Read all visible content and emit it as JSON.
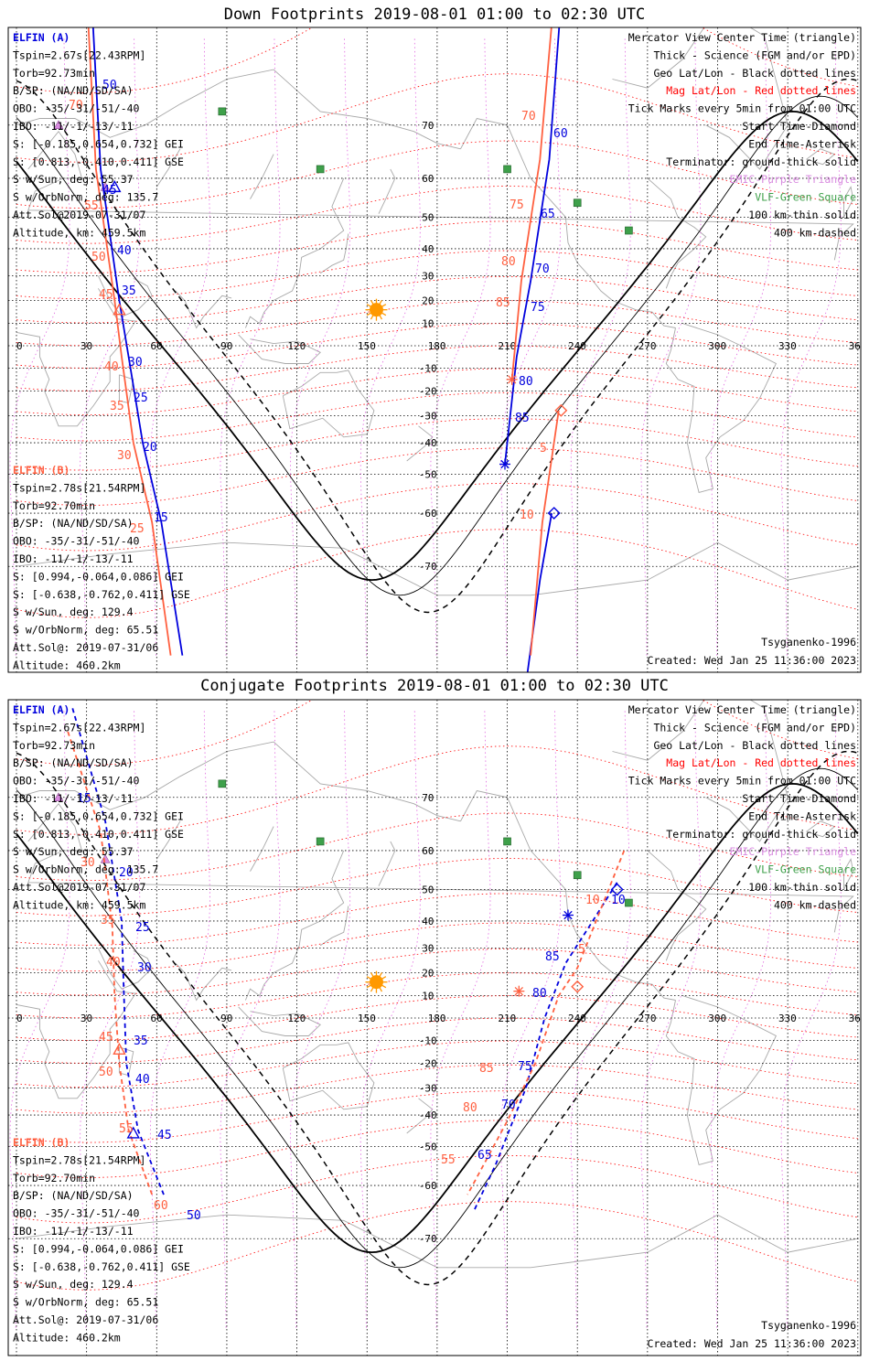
{
  "panels": [
    {
      "title": "Down Footprints 2019-08-01 01:00 to 02:30 UTC",
      "kind": "down",
      "legend": [
        {
          "text": "Mercator View Center Time (triangle)",
          "color": "#000000"
        },
        {
          "text": "Thick - Science (FGM and/or EPD)",
          "color": "#000000"
        },
        {
          "text": "Geo Lat/Lon - Black dotted lines",
          "color": "#000000"
        },
        {
          "text": "Mag Lat/Lon - Red dotted lines",
          "color": "#ff0000"
        },
        {
          "text": "Tick Marks every 5min from 01:00 UTC",
          "color": "#000000"
        },
        {
          "text": "Start Time-Diamond",
          "color": "#000000"
        },
        {
          "text": "End Time-Asterisk",
          "color": "#000000"
        },
        {
          "text": "Terminator: ground-thick solid",
          "color": "#000000"
        },
        {
          "text": "EMIC-Purple Triangle",
          "color": "#d98ce0"
        },
        {
          "text": "VLF-Green Square",
          "color": "#3ea04a"
        },
        {
          "text": "100 km-thin solid",
          "color": "#000000"
        },
        {
          "text": "400 km-dashed",
          "color": "#000000"
        }
      ],
      "sat_a": {
        "name": "ELFIN (A)",
        "lines": [
          "Tspin=2.67s[22.43RPM]",
          "Torb=92.73min",
          "B/SP: (NA/ND/SD/SA)",
          "OBO: -35/-31/-51/-40",
          "IBO: -11/-1/-13/-11",
          "S: [-0.185,0.654,0.732] GEI",
          "S: [0.813,-0.410,0.411] GSE",
          "S w/Sun, deg: 55.37",
          "S w/OrbNorm, deg: 135.7",
          "Att.Sol@2019-07-31/07",
          "Altitude, km: 459.5km"
        ]
      },
      "sat_b": {
        "name": "ELFIN (B)",
        "lines": [
          "Tspin=2.78s[21.54RPM]",
          "Torb=92.70min",
          "B/SP: (NA/ND/SD/SA)",
          "OBO: -35/-31/-51/-40",
          "IBO: -11/-1/-13/-11",
          "S: [0.994,-0.064,0.086] GEI",
          "S: [-0.638,-0.762,0.411] GSE",
          "S w/Sun, deg: 129.4",
          "S w/OrbNorm, deg: 65.51",
          "Att.Sol@: 2019-07-31/06",
          "Altitude: 460.2km"
        ]
      },
      "model": "Tsyganenko-1996",
      "created": "Created: Wed Jan 25 11:36:00 2023",
      "blue_left_labels": [
        "50",
        "45",
        "40",
        "35",
        "30",
        "25",
        "20",
        "15"
      ],
      "red_left_labels": [
        "70",
        "55",
        "50",
        "45",
        "40",
        "35",
        "30",
        "25"
      ],
      "blue_right_labels": [
        "60",
        "65",
        "70",
        "75",
        "80",
        "85"
      ],
      "red_right_labels": [
        "70",
        "75",
        "80",
        "85",
        "5",
        "10"
      ]
    },
    {
      "title": "Conjugate Footprints 2019-08-01 01:00 to 02:30 UTC",
      "kind": "conj",
      "legend": [
        {
          "text": "Mercator View Center Time (triangle)",
          "color": "#000000"
        },
        {
          "text": "Thick - Science (FGM and/or EPD)",
          "color": "#000000"
        },
        {
          "text": "Geo Lat/Lon - Black dotted lines",
          "color": "#000000"
        },
        {
          "text": "Mag Lat/Lon - Red dotted lines",
          "color": "#ff0000"
        },
        {
          "text": "Tick Marks every 5min from 01:00 UTC",
          "color": "#000000"
        },
        {
          "text": "Start Time-Diamond",
          "color": "#000000"
        },
        {
          "text": "End Time-Asterisk",
          "color": "#000000"
        },
        {
          "text": "Terminator: ground-thick solid",
          "color": "#000000"
        },
        {
          "text": "EMIC-Purple Triangle",
          "color": "#d98ce0"
        },
        {
          "text": "VLF-Green Square",
          "color": "#3ea04a"
        },
        {
          "text": "100 km-thin solid",
          "color": "#000000"
        },
        {
          "text": "400 km-dashed",
          "color": "#000000"
        }
      ],
      "sat_a": {
        "name": "ELFIN (A)",
        "lines": [
          "Tspin=2.67s[22.43RPM]",
          "Torb=92.73min",
          "B/SP: (NA/ND/SD/SA)",
          "OBO: -35/-31/-51/-40",
          "IBO: -11/-1/-13/-11",
          "S: [-0.185,0.654,0.732] GEI",
          "S: [0.813,-0.410,0.411] GSE",
          "S w/Sun, deg: 55.37",
          "S w/OrbNorm, deg: 135.7",
          "Att.Sol@2019-07-31/07",
          "Altitude, km: 459.5km"
        ]
      },
      "sat_b": {
        "name": "ELFIN (B)",
        "lines": [
          "Tspin=2.78s[21.54RPM]",
          "Torb=92.70min",
          "B/SP: (NA/ND/SD/SA)",
          "OBO: -35/-31/-51/-40",
          "IBO: -11/-1/-13/-11",
          "S: [0.994,-0.064,0.086] GEI",
          "S: [-0.638,-0.762,0.411] GSE",
          "S w/Sun, deg: 129.4",
          "S w/OrbNorm, deg: 65.51",
          "Att.Sol@: 2019-07-31/06",
          "Altitude: 460.2km"
        ]
      },
      "model": "Tsyganenko-1996",
      "created": "Created: Wed Jan 25 11:36:00 2023",
      "blue_left_labels": [
        "15",
        "20",
        "25",
        "30",
        "35",
        "40",
        "45",
        "50"
      ],
      "red_left_labels": [
        "30",
        "35",
        "40",
        "45",
        "50",
        "55",
        "60"
      ],
      "blue_right_labels": [
        "10",
        "85",
        "80",
        "75",
        "70",
        "65"
      ],
      "red_right_labels": [
        "10",
        "5",
        "85",
        "80",
        "55"
      ]
    }
  ],
  "axes": {
    "lon_ticks": [
      "0",
      "30",
      "60",
      "90",
      "120",
      "150",
      "180",
      "210",
      "240",
      "270",
      "300",
      "330",
      "360"
    ],
    "lat_ticks": [
      "70",
      "60",
      "50",
      "40",
      "30",
      "20",
      "10",
      "-10",
      "-20",
      "-30",
      "-40",
      "-50",
      "-60",
      "-70"
    ]
  },
  "colors": {
    "sat_a": "#0000dd",
    "sat_b": "#ff6040",
    "mag_grid": "#ff0000",
    "geo_grid": "#000000",
    "emic": "#d98ce0",
    "vlf": "#3ea04a",
    "sun": "#ff9900",
    "coast": "#a8a8a8"
  }
}
